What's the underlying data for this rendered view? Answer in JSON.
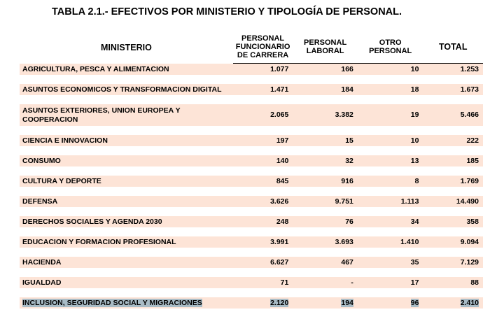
{
  "title": "TABLA 2.1.- EFECTIVOS POR MINISTERIO Y TIPOLOGÍA DE PERSONAL.",
  "headers": {
    "ministerio": "MINISTERIO",
    "funcionario": "PERSONAL FUNCIONARIO DE CARRERA",
    "laboral": "PERSONAL LABORAL",
    "otro": "OTRO PERSONAL",
    "total": "TOTAL"
  },
  "band_color": "#fde4d7",
  "selection_color": "#a9bcc6",
  "rows": [
    {
      "ministerio": "AGRICULTURA, PESCA Y ALIMENTACION",
      "funcionario": "1.077",
      "laboral": "166",
      "otro": "10",
      "total": "1.253"
    },
    {
      "ministerio": "ASUNTOS ECONOMICOS Y TRANSFORMACION DIGITAL",
      "funcionario": "1.471",
      "laboral": "184",
      "otro": "18",
      "total": "1.673"
    },
    {
      "ministerio": "ASUNTOS EXTERIORES, UNION EUROPEA Y COOPERACION",
      "funcionario": "2.065",
      "laboral": "3.382",
      "otro": "19",
      "total": "5.466"
    },
    {
      "ministerio": "CIENCIA E INNOVACION",
      "funcionario": "197",
      "laboral": "15",
      "otro": "10",
      "total": "222"
    },
    {
      "ministerio": "CONSUMO",
      "funcionario": "140",
      "laboral": "32",
      "otro": "13",
      "total": "185"
    },
    {
      "ministerio": "CULTURA Y DEPORTE",
      "funcionario": "845",
      "laboral": "916",
      "otro": "8",
      "total": "1.769"
    },
    {
      "ministerio": "DEFENSA",
      "funcionario": "3.626",
      "laboral": "9.751",
      "otro": "1.113",
      "total": "14.490"
    },
    {
      "ministerio": "DERECHOS SOCIALES Y AGENDA 2030",
      "funcionario": "248",
      "laboral": "76",
      "otro": "34",
      "total": "358"
    },
    {
      "ministerio": "EDUCACION Y FORMACION PROFESIONAL",
      "funcionario": "3.991",
      "laboral": "3.693",
      "otro": "1.410",
      "total": "9.094"
    },
    {
      "ministerio": "HACIENDA",
      "funcionario": "6.627",
      "laboral": "467",
      "otro": "35",
      "total": "7.129"
    },
    {
      "ministerio": "IGUALDAD",
      "funcionario": "71",
      "laboral": "-",
      "otro": "17",
      "total": "88"
    },
    {
      "ministerio": "INCLUSION, SEGURIDAD SOCIAL Y MIGRACIONES",
      "funcionario": "2.120",
      "laboral": "194",
      "otro": "96",
      "total": "2.410",
      "selected": true
    }
  ]
}
